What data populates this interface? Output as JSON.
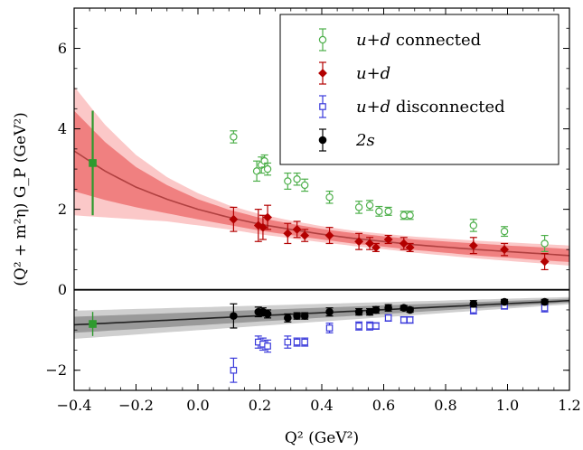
{
  "chart_data": {
    "type": "scatter",
    "xlabel": "Q² (GeV²)",
    "ylabel": "(Q² + m²η) G_P (GeV²)",
    "xlim": [
      -0.4,
      1.2
    ],
    "ylim": [
      -2.5,
      7.0
    ],
    "xticks": [
      -0.4,
      -0.2,
      0.0,
      0.2,
      0.4,
      0.6,
      0.8,
      1.0,
      1.2
    ],
    "yticks": [
      -2,
      0,
      2,
      4,
      6
    ],
    "xtick_labels": [
      "−0.4",
      "−0.2",
      "0.0",
      "0.2",
      "0.4",
      "0.6",
      "0.8",
      "1.0",
      "1.2"
    ],
    "ytick_labels": [
      "−2",
      "0",
      "2",
      "4",
      "6"
    ],
    "grid": false,
    "legend_position": "top-right",
    "hline_y": 0,
    "series": [
      {
        "name": "u + d connected",
        "legend": {
          "math": "u+d",
          "rest": " connected"
        },
        "color": "#4daf4a",
        "marker": "open-circle",
        "x": [
          0.115,
          0.19,
          0.205,
          0.215,
          0.225,
          0.29,
          0.32,
          0.345,
          0.425,
          0.52,
          0.555,
          0.585,
          0.615,
          0.665,
          0.685,
          0.89,
          0.99,
          1.12
        ],
        "y": [
          3.8,
          2.95,
          3.1,
          3.2,
          3.0,
          2.7,
          2.75,
          2.6,
          2.3,
          2.05,
          2.1,
          1.95,
          1.95,
          1.85,
          1.85,
          1.6,
          1.45,
          1.15
        ],
        "err": [
          0.15,
          0.25,
          0.2,
          0.15,
          0.15,
          0.2,
          0.15,
          0.15,
          0.15,
          0.15,
          0.12,
          0.12,
          0.1,
          0.1,
          0.1,
          0.15,
          0.12,
          0.2
        ]
      },
      {
        "name": "u + d",
        "legend": {
          "math": "u+d",
          "rest": ""
        },
        "color": "#b30000",
        "marker": "diamond",
        "x": [
          0.115,
          0.195,
          0.21,
          0.225,
          0.29,
          0.32,
          0.345,
          0.425,
          0.52,
          0.555,
          0.575,
          0.615,
          0.665,
          0.685,
          0.89,
          0.99,
          1.12
        ],
        "y": [
          1.75,
          1.6,
          1.55,
          1.8,
          1.4,
          1.5,
          1.35,
          1.35,
          1.2,
          1.15,
          1.05,
          1.25,
          1.15,
          1.05,
          1.1,
          1.0,
          0.7
        ],
        "err": [
          0.3,
          0.4,
          0.3,
          0.3,
          0.25,
          0.2,
          0.15,
          0.2,
          0.2,
          0.15,
          0.1,
          0.1,
          0.15,
          0.1,
          0.2,
          0.15,
          0.2
        ]
      },
      {
        "name": "u + d disconnected",
        "legend": {
          "math": "u+d",
          "rest": " disconnected"
        },
        "color": "#3a3adb",
        "marker": "open-square",
        "x": [
          0.115,
          0.195,
          0.21,
          0.225,
          0.29,
          0.32,
          0.345,
          0.425,
          0.52,
          0.555,
          0.575,
          0.615,
          0.665,
          0.685,
          0.89,
          0.99,
          1.12
        ],
        "y": [
          -2.0,
          -1.3,
          -1.35,
          -1.4,
          -1.3,
          -1.3,
          -1.3,
          -0.95,
          -0.9,
          -0.9,
          -0.9,
          -0.7,
          -0.75,
          -0.75,
          -0.5,
          -0.4,
          -0.45
        ],
        "err": [
          0.3,
          0.15,
          0.15,
          0.15,
          0.15,
          0.1,
          0.1,
          0.12,
          0.1,
          0.1,
          0.08,
          0.08,
          0.08,
          0.08,
          0.1,
          0.08,
          0.1
        ]
      },
      {
        "name": "2s",
        "legend": {
          "math": "2s",
          "rest": ""
        },
        "color": "#000000",
        "marker": "filled-circle",
        "x": [
          0.115,
          0.195,
          0.21,
          0.225,
          0.29,
          0.32,
          0.345,
          0.425,
          0.52,
          0.555,
          0.575,
          0.615,
          0.665,
          0.685,
          0.89,
          0.99,
          1.12
        ],
        "y": [
          -0.65,
          -0.55,
          -0.55,
          -0.6,
          -0.7,
          -0.65,
          -0.65,
          -0.55,
          -0.55,
          -0.55,
          -0.5,
          -0.45,
          -0.45,
          -0.5,
          -0.35,
          -0.3,
          -0.3
        ],
        "err": [
          0.3,
          0.12,
          0.1,
          0.1,
          0.1,
          0.08,
          0.08,
          0.1,
          0.08,
          0.08,
          0.08,
          0.08,
          0.06,
          0.06,
          0.08,
          0.06,
          0.06
        ]
      }
    ],
    "extrapolated_points": [
      {
        "x": -0.34,
        "y": 3.15,
        "err": 1.3,
        "color": "#2e9a2e",
        "marker": "filled-square"
      },
      {
        "x": -0.34,
        "y": -0.85,
        "err": 0.3,
        "color": "#2e9a2e",
        "marker": "filled-square"
      }
    ],
    "fit_bands": [
      {
        "for_series": "u + d",
        "line_color": "#b04040",
        "inner_color": "#f08080",
        "outer_color": "#fbc8c8",
        "x": [
          -0.4,
          -0.3,
          -0.2,
          -0.1,
          0.0,
          0.1,
          0.2,
          0.3,
          0.4,
          0.5,
          0.6,
          0.7,
          0.8,
          0.9,
          1.0,
          1.1,
          1.2
        ],
        "y": [
          3.45,
          2.95,
          2.55,
          2.25,
          2.0,
          1.8,
          1.63,
          1.5,
          1.38,
          1.28,
          1.2,
          1.12,
          1.06,
          1.0,
          0.95,
          0.9,
          0.85
        ],
        "inner_halfwidth": [
          1.0,
          0.72,
          0.5,
          0.35,
          0.25,
          0.19,
          0.16,
          0.14,
          0.13,
          0.13,
          0.13,
          0.13,
          0.14,
          0.15,
          0.15,
          0.16,
          0.16
        ],
        "outer_halfwidth": [
          1.6,
          1.15,
          0.8,
          0.55,
          0.4,
          0.3,
          0.25,
          0.22,
          0.2,
          0.19,
          0.19,
          0.2,
          0.21,
          0.22,
          0.23,
          0.24,
          0.25
        ]
      },
      {
        "for_series": "2s",
        "line_color": "#222222",
        "inner_color": "#9a9a9a",
        "outer_color": "#cfcfcf",
        "x": [
          -0.4,
          1.2
        ],
        "y": [
          -0.87,
          -0.27
        ],
        "inner_halfwidth": [
          0.2,
          0.05
        ],
        "outer_halfwidth": [
          0.35,
          0.09
        ]
      }
    ]
  }
}
